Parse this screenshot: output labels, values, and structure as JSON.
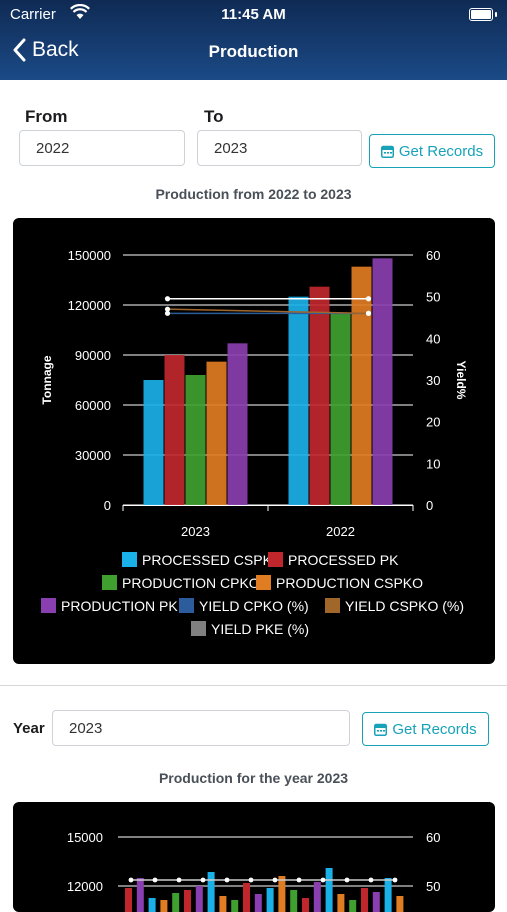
{
  "status": {
    "carrier": "Carrier",
    "time": "11:45 AM"
  },
  "nav": {
    "back_label": "Back",
    "title": "Production"
  },
  "range_filter": {
    "from_label": "From",
    "from_value": "2022",
    "to_label": "To",
    "to_value": "2023",
    "button_label": "Get Records"
  },
  "chart1_title": "Production from 2022 to 2023",
  "year_filter": {
    "year_label": "Year",
    "year_value": "2023",
    "button_label": "Get Records"
  },
  "chart2_title": "Production for the year 2023",
  "colors": {
    "processed_cspk": "#1ab0e8",
    "processed_pk": "#c0272d",
    "production_cpko": "#3f9f2f",
    "production_cspko": "#e07c22",
    "production_pk": "#8a3fb0",
    "yield_cpko": "#2d5c9c",
    "yield_cspko": "#a0662a",
    "yield_pke": "#808080"
  },
  "chart_data": [
    {
      "type": "bar",
      "title": "",
      "categories": [
        "2023",
        "2022"
      ],
      "ylabel": "Tonnage",
      "y2label": "Yield%",
      "ylim": [
        0,
        150000
      ],
      "y2lim": [
        0,
        60
      ],
      "yticks": [
        "150000",
        "120000",
        "90000",
        "60000",
        "30000",
        "0"
      ],
      "y2ticks": [
        "60",
        "50",
        "40",
        "30",
        "20",
        "10",
        "0"
      ],
      "grid": true,
      "legend": "bottom",
      "series": [
        {
          "name": "PROCESSED CSPK",
          "key": "processed_cspk",
          "kind": "bar",
          "values": [
            75000,
            125000
          ]
        },
        {
          "name": "PROCESSED PK",
          "key": "processed_pk",
          "kind": "bar",
          "values": [
            90000,
            131000
          ]
        },
        {
          "name": "PRODUCTION CPKO",
          "key": "production_cpko",
          "kind": "bar",
          "values": [
            78000,
            115000
          ]
        },
        {
          "name": "PRODUCTION CSPKO",
          "key": "production_cspko",
          "kind": "bar",
          "values": [
            86000,
            143000
          ]
        },
        {
          "name": "PRODUCTION PK",
          "key": "production_pk",
          "kind": "bar",
          "values": [
            97000,
            148000
          ]
        },
        {
          "name": "YIELD CPKO (%)",
          "key": "yield_cpko",
          "kind": "line",
          "values": [
            46,
            46
          ]
        },
        {
          "name": "YIELD CSPKO (%)",
          "key": "yield_cspko",
          "kind": "line",
          "values": [
            47,
            46
          ]
        },
        {
          "name": "YIELD PKE (%)",
          "key": "yield_pke",
          "kind": "line",
          "values": [
            49.5,
            49.5
          ]
        }
      ]
    },
    {
      "type": "bar",
      "title": "",
      "yticks": [
        "15000",
        "12000"
      ],
      "y2ticks": [
        "60",
        "50"
      ]
    }
  ]
}
